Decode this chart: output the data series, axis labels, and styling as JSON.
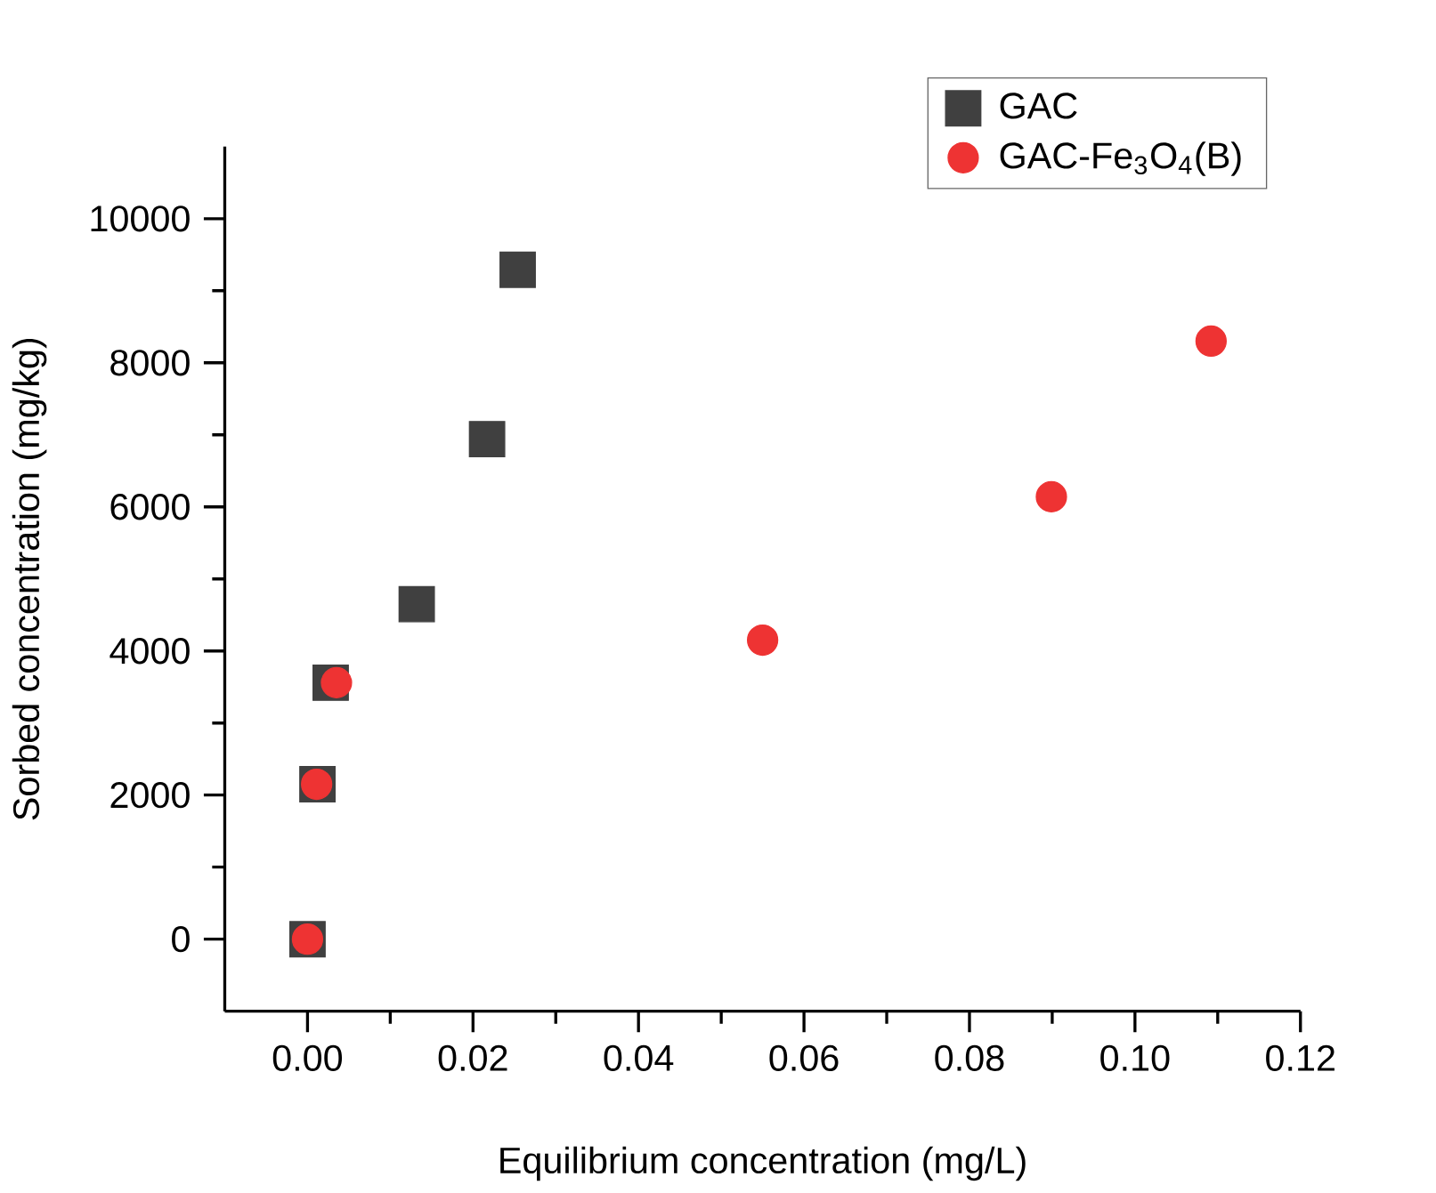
{
  "chart_data": {
    "type": "scatter",
    "xlabel": "Equilibrium concentration (mg/L)",
    "ylabel": "Sorbed concentration (mg/kg)",
    "xlim": [
      -0.01,
      0.12
    ],
    "ylim": [
      -1000,
      11000
    ],
    "xticks": [
      {
        "value": 0,
        "label": "0.00"
      },
      {
        "value": 0.02,
        "label": "0.02"
      },
      {
        "value": 0.04,
        "label": "0.04"
      },
      {
        "value": 0.06,
        "label": "0.06"
      },
      {
        "value": 0.08,
        "label": "0.08"
      },
      {
        "value": 0.1,
        "label": "0.10"
      },
      {
        "value": 0.12,
        "label": "0.12"
      }
    ],
    "yticks": [
      0,
      2000,
      4000,
      6000,
      8000,
      10000
    ],
    "legend": "top right",
    "grid": false,
    "series": [
      {
        "name": "GAC",
        "color": "#404040",
        "marker": "square",
        "x": [
          0,
          0.0012,
          0.0028,
          0.0132,
          0.0217,
          0.0254
        ],
        "values": [
          0,
          2150,
          3560,
          4650,
          6940,
          9290
        ]
      },
      {
        "name": "GAC-Fe$_{3}$O$_{4}$(B)",
        "color": "#ee3333",
        "marker": "circle",
        "x": [
          0,
          0.0011,
          0.0035,
          0.055,
          0.0899,
          0.1092
        ],
        "values": [
          0,
          2150,
          3560,
          4150,
          6140,
          8300
        ]
      }
    ]
  }
}
